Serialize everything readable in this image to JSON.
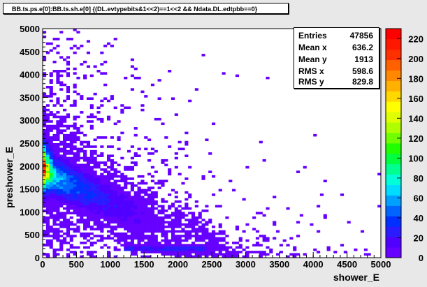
{
  "title": "BB.ts.ps.e[0]:BB.ts.sh.e[0] {(DL.evtypebits&1<<2)==1<<2 && Ndata.DL.edtpbb==0}",
  "stats": [
    {
      "label": "Entries",
      "value": "47856"
    },
    {
      "label": "Mean x",
      "value": "636.2"
    },
    {
      "label": "Mean y",
      "value": "1913"
    },
    {
      "label": "RMS x",
      "value": "598.6"
    },
    {
      "label": "RMS y",
      "value": "829.8"
    }
  ],
  "chart_data": {
    "type": "heatmap",
    "title": "BB.ts.ps.e[0]:BB.ts.sh.e[0] {(DL.evtypebits&1<<2)==1<<2 && Ndata.DL.edtpbb==0}",
    "xlabel": "shower_E",
    "ylabel": "preshower_E",
    "xlim": [
      0,
      5000
    ],
    "ylim": [
      0,
      5000
    ],
    "x_ticks": [
      "0",
      "500",
      "1000",
      "1500",
      "2000",
      "2500",
      "3000",
      "3500",
      "4000",
      "4500",
      "5000"
    ],
    "y_ticks": [
      "0",
      "500",
      "1000",
      "1500",
      "2000",
      "2500",
      "3000",
      "3500",
      "4000",
      "4500",
      "5000"
    ],
    "z_ticks": [
      "0",
      "20",
      "40",
      "60",
      "80",
      "100",
      "120",
      "140",
      "160",
      "180",
      "200",
      "220"
    ],
    "zlim": [
      0,
      230
    ],
    "bins": [
      100,
      100
    ],
    "palette": [
      "#6600ff",
      "#5000ff",
      "#2a1cff",
      "#0030ff",
      "#0064ff",
      "#00a0ff",
      "#00dcff",
      "#00ffd8",
      "#00ff90",
      "#00ff40",
      "#20ff00",
      "#70ff00",
      "#b0ff00",
      "#e0ff00",
      "#ffff00",
      "#ffd800",
      "#ffb000",
      "#ff8800",
      "#ff6000",
      "#ff3000",
      "#ff1800",
      "#ff0000"
    ],
    "features": {
      "main_band": "anti-correlated band from (0, 2000) down toward (2800, 0)",
      "hot_spot": {
        "x": 50,
        "y": 2000,
        "z": 220
      },
      "low_band": {
        "x_range": [
          1200,
          2400
        ],
        "y": 200
      }
    },
    "grid": false,
    "legend": "none"
  }
}
